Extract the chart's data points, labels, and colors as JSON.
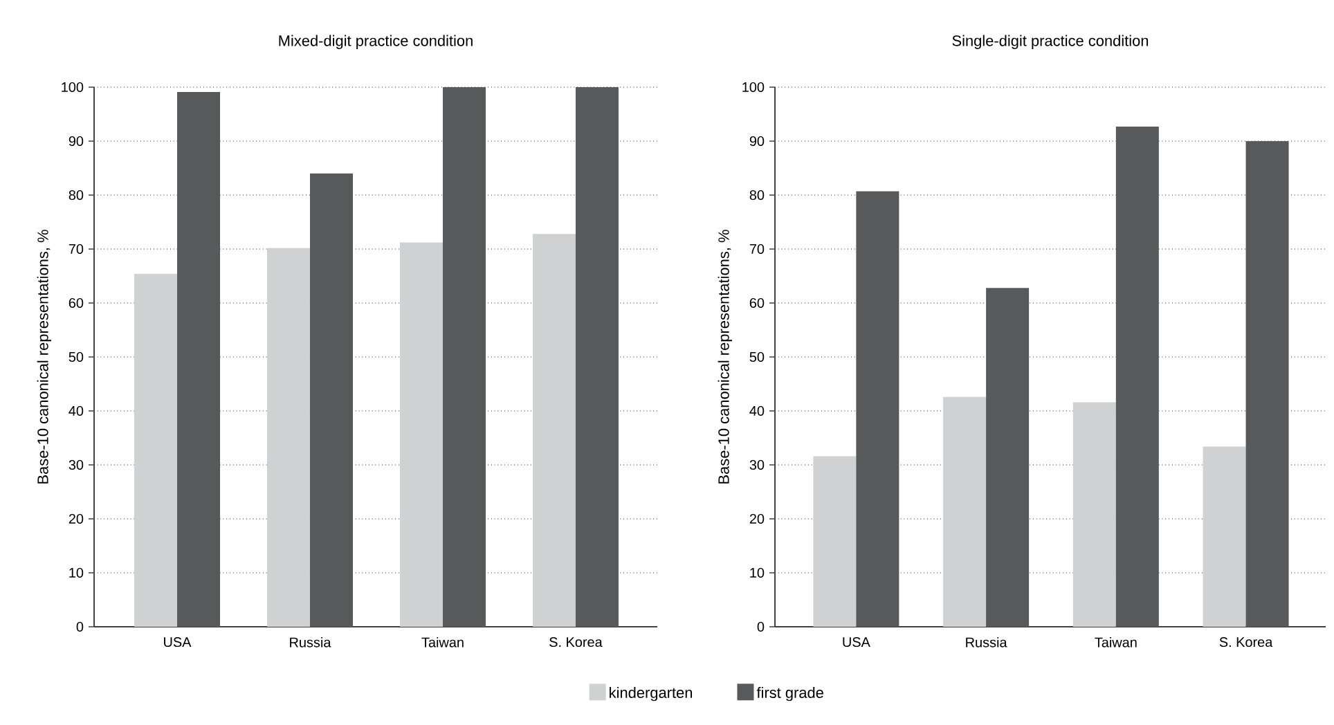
{
  "chart_data": [
    {
      "type": "bar",
      "title": "Mixed-digit practice condition",
      "ylabel": "Base-10 canonical representations, %",
      "categories": [
        "USA",
        "Russia",
        "Taiwan",
        "S. Korea"
      ],
      "series": [
        {
          "name": "kindergarten",
          "color": "#d0d1d3",
          "values": [
            65.4,
            70.2,
            71.2,
            72.8
          ]
        },
        {
          "name": "first grade",
          "color": "#58595b",
          "values": [
            99.1,
            84.0,
            100,
            100
          ]
        }
      ],
      "ylim": [
        0,
        100
      ],
      "yticks": [
        0,
        10,
        20,
        30,
        40,
        50,
        60,
        70,
        80,
        90,
        100
      ],
      "grid": "y",
      "legend": "bottom"
    },
    {
      "type": "bar",
      "title": "Single-digit practice condition",
      "ylabel": "Base-10 canonical representations, %",
      "categories": [
        "USA",
        "Russia",
        "Taiwan",
        "S. Korea"
      ],
      "series": [
        {
          "color": "#d0d1d3",
          "values": [
            31.6,
            42.6,
            41.6,
            33.4
          ]
        },
        {
          "color": "#58595b",
          "values": [
            80.7,
            62.8,
            92.7,
            90.0
          ]
        }
      ],
      "ylim": [
        0,
        100
      ],
      "yticks": [
        0,
        10,
        20,
        30,
        40,
        50,
        60,
        70,
        80,
        90,
        100
      ],
      "grid": "y"
    }
  ]
}
